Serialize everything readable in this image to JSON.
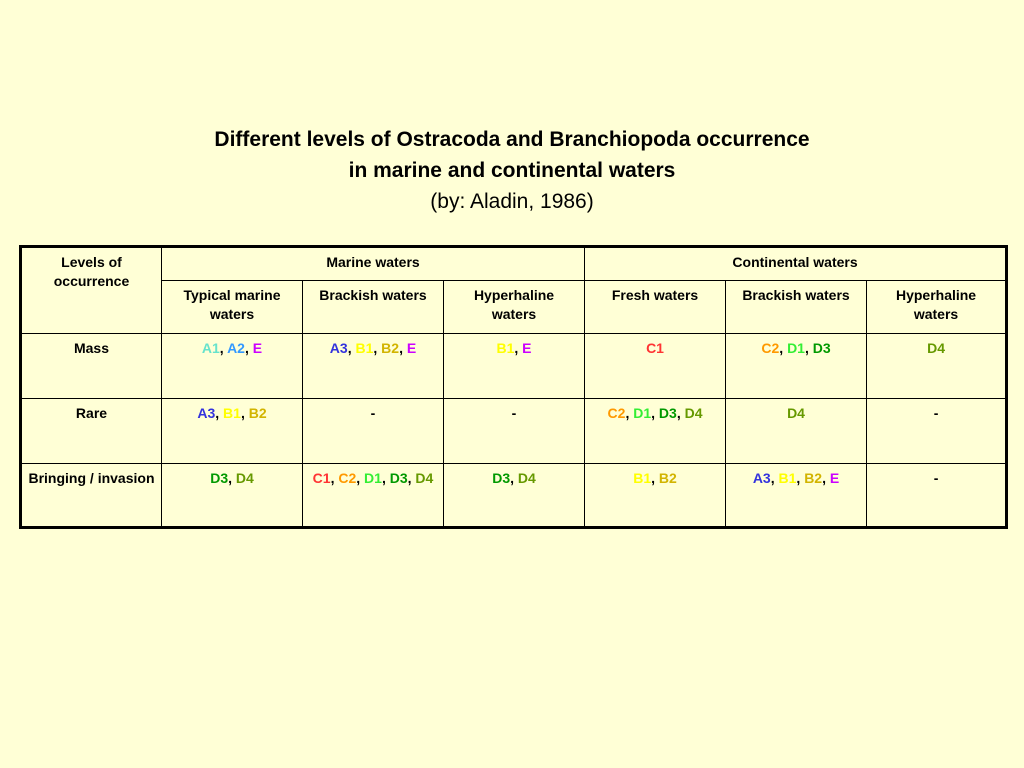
{
  "title": {
    "line1": "Different levels of Ostracoda and Branchiopoda occurrence",
    "line2": "in marine and continental waters",
    "subtitle": "(by: Aladin, 1986)"
  },
  "colors": {
    "background": "#ffffd6",
    "A1": "#66e3cc",
    "A2": "#3399ff",
    "A3": "#3333dd",
    "B1": "#ffff00",
    "B2": "#d2b400",
    "C1": "#ff3333",
    "C2": "#ff9900",
    "D1": "#33ee33",
    "D3": "#009900",
    "D4": "#669900",
    "E": "#cc00ff"
  },
  "table": {
    "corner_header": "Levels of occurrence",
    "groups": [
      "Marine waters",
      "Continental waters"
    ],
    "columns": [
      "Typical marine waters",
      "Brackish waters",
      "Hyperhaline waters",
      "Fresh waters",
      "Brackish waters",
      "Hyperhaline waters"
    ],
    "rows": [
      {
        "label": "Mass",
        "cells": [
          [
            {
              "text": "A1",
              "color": "#66e3cc"
            },
            {
              "text": "A2",
              "color": "#3399ff"
            },
            {
              "text": "E",
              "color": "#cc00ff"
            }
          ],
          [
            {
              "text": "A3",
              "color": "#3333dd"
            },
            {
              "text": "B1",
              "color": "#ffff00"
            },
            {
              "text": "B2",
              "color": "#d2b400"
            },
            {
              "text": "E",
              "color": "#cc00ff"
            }
          ],
          [
            {
              "text": "B1",
              "color": "#ffff00"
            },
            {
              "text": "E",
              "color": "#cc00ff"
            }
          ],
          [
            {
              "text": "C1",
              "color": "#ff3333"
            }
          ],
          [
            {
              "text": "C2",
              "color": "#ff9900"
            },
            {
              "text": "D1",
              "color": "#33ee33"
            },
            {
              "text": "D3",
              "color": "#009900"
            }
          ],
          [
            {
              "text": "D4",
              "color": "#669900"
            }
          ]
        ]
      },
      {
        "label": "Rare",
        "cells": [
          [
            {
              "text": "A3",
              "color": "#3333dd"
            },
            {
              "text": "B1",
              "color": "#ffff00"
            },
            {
              "text": "B2",
              "color": "#d2b400"
            }
          ],
          [
            {
              "text": "-",
              "color": "#000000"
            }
          ],
          [
            {
              "text": "-",
              "color": "#000000"
            }
          ],
          [
            {
              "text": "C2",
              "color": "#ff9900"
            },
            {
              "text": "D1",
              "color": "#33ee33"
            },
            {
              "text": "D3",
              "color": "#009900"
            },
            {
              "text": "D4",
              "color": "#669900"
            }
          ],
          [
            {
              "text": "D4",
              "color": "#669900"
            }
          ],
          [
            {
              "text": "-",
              "color": "#000000"
            }
          ]
        ]
      },
      {
        "label": "Bringing / invasion",
        "cells": [
          [
            {
              "text": "D3",
              "color": "#009900"
            },
            {
              "text": "D4",
              "color": "#669900"
            }
          ],
          [
            {
              "text": "C1",
              "color": "#ff3333"
            },
            {
              "text": "C2",
              "color": "#ff9900"
            },
            {
              "text": "D1",
              "color": "#33ee33"
            },
            {
              "text": "D3",
              "color": "#009900"
            },
            {
              "text": "D4",
              "color": "#669900"
            }
          ],
          [
            {
              "text": "D3",
              "color": "#009900"
            },
            {
              "text": "D4",
              "color": "#669900"
            }
          ],
          [
            {
              "text": "B1",
              "color": "#ffff00"
            },
            {
              "text": "B2",
              "color": "#d2b400"
            }
          ],
          [
            {
              "text": "A3",
              "color": "#3333dd"
            },
            {
              "text": "B1",
              "color": "#ffff00"
            },
            {
              "text": "B2",
              "color": "#d2b400"
            },
            {
              "text": "E",
              "color": "#cc00ff"
            }
          ],
          [
            {
              "text": "-",
              "color": "#000000"
            }
          ]
        ]
      }
    ]
  }
}
